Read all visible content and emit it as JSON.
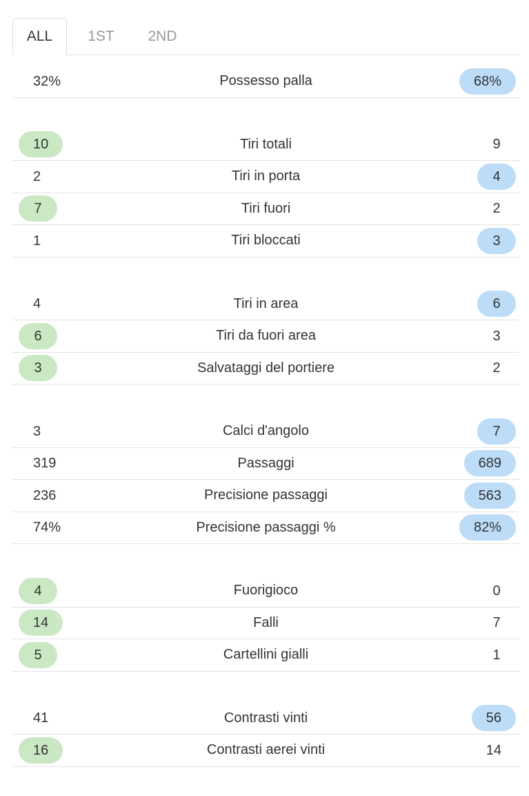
{
  "tabs": {
    "items": [
      "ALL",
      "1ST",
      "2ND"
    ],
    "active": 0
  },
  "groups": [
    {
      "rows": [
        {
          "home": "32%",
          "label": "Possesso palla",
          "away": "68%",
          "highlight": "away"
        }
      ]
    },
    {
      "rows": [
        {
          "home": "10",
          "label": "Tiri totali",
          "away": "9",
          "highlight": "home"
        },
        {
          "home": "2",
          "label": "Tiri in porta",
          "away": "4",
          "highlight": "away"
        },
        {
          "home": "7",
          "label": "Tiri fuori",
          "away": "2",
          "highlight": "home"
        },
        {
          "home": "1",
          "label": "Tiri bloccati",
          "away": "3",
          "highlight": "away"
        }
      ]
    },
    {
      "rows": [
        {
          "home": "4",
          "label": "Tiri in area",
          "away": "6",
          "highlight": "away"
        },
        {
          "home": "6",
          "label": "Tiri da fuori area",
          "away": "3",
          "highlight": "home"
        },
        {
          "home": "3",
          "label": "Salvataggi del portiere",
          "away": "2",
          "highlight": "home"
        }
      ]
    },
    {
      "rows": [
        {
          "home": "3",
          "label": "Calci d'angolo",
          "away": "7",
          "highlight": "away"
        },
        {
          "home": "319",
          "label": "Passaggi",
          "away": "689",
          "highlight": "away"
        },
        {
          "home": "236",
          "label": "Precisione passaggi",
          "away": "563",
          "highlight": "away"
        },
        {
          "home": "74%",
          "label": "Precisione passaggi %",
          "away": "82%",
          "highlight": "away"
        }
      ]
    },
    {
      "rows": [
        {
          "home": "4",
          "label": "Fuorigioco",
          "away": "0",
          "highlight": "home"
        },
        {
          "home": "14",
          "label": "Falli",
          "away": "7",
          "highlight": "home"
        },
        {
          "home": "5",
          "label": "Cartellini gialli",
          "away": "1",
          "highlight": "home"
        }
      ]
    },
    {
      "rows": [
        {
          "home": "41",
          "label": "Contrasti vinti",
          "away": "56",
          "highlight": "away"
        },
        {
          "home": "16",
          "label": "Contrasti aerei vinti",
          "away": "14",
          "highlight": "home"
        }
      ]
    }
  ]
}
